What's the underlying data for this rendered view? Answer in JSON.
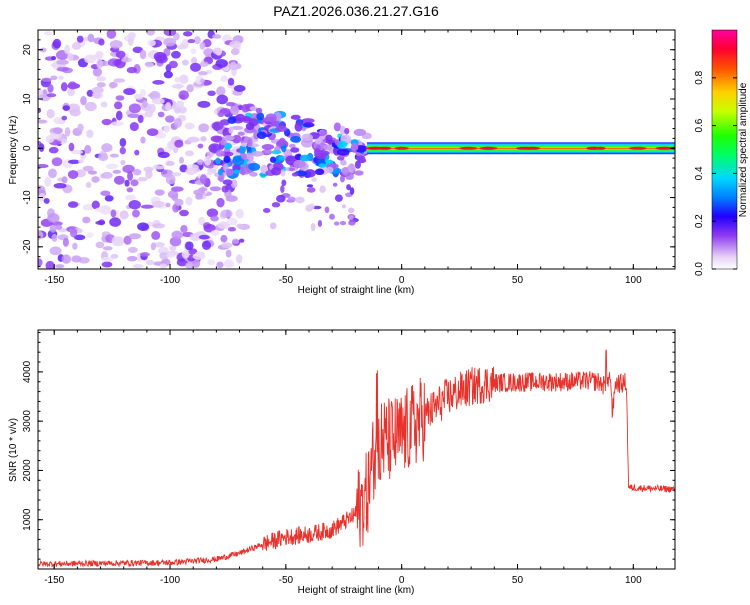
{
  "title": "PAZ1.2026.036.21.27.G16",
  "chart_data": [
    {
      "type": "heatmap",
      "xlabel": "Height of straight line (km)",
      "ylabel": "Frequency (Hz)",
      "xlim": [
        -157,
        118
      ],
      "ylim": [
        -24.5,
        24
      ],
      "x_ticks": [
        -150,
        -100,
        -50,
        0,
        50,
        100
      ],
      "x_tick_labels": [
        "-150",
        "-100",
        "-50",
        "0",
        "50",
        "100"
      ],
      "y_ticks": [
        -20,
        -10,
        0,
        10,
        20
      ],
      "y_tick_labels": [
        "-20",
        "-10",
        "0",
        "10",
        "20"
      ],
      "colorbar": {
        "label": "Normalized spectral amplitude",
        "range": [
          0.0,
          1.0
        ],
        "ticks": [
          0.0,
          0.2,
          0.4,
          0.6,
          0.8
        ],
        "tick_labels": [
          "0.0",
          "0.2",
          "0.4",
          "0.6",
          "0.8"
        ]
      },
      "description_regions": [
        {
          "x_range": [
            -157,
            -80
          ],
          "freq_range": [
            -24,
            24
          ],
          "amplitude": 0.15
        },
        {
          "x_range": [
            -80,
            -15
          ],
          "freq_range": [
            -17,
            12
          ],
          "amplitude": 0.3
        },
        {
          "x_range": [
            -15,
            118
          ],
          "freq_range": [
            -1,
            1
          ],
          "amplitude": 0.9
        }
      ]
    },
    {
      "type": "line",
      "xlabel": "Height of straight line (km)",
      "ylabel": "SNR (10 * v/v)",
      "xlim": [
        -157,
        118
      ],
      "ylim": [
        0,
        4850
      ],
      "x_ticks": [
        -150,
        -100,
        -50,
        0,
        50,
        100
      ],
      "x_tick_labels": [
        "-150",
        "-100",
        "-50",
        "0",
        "50",
        "100"
      ],
      "y_ticks": [
        1000,
        2000,
        3000,
        4000
      ],
      "y_tick_labels": [
        "1000",
        "2000",
        "3000",
        "4000"
      ],
      "series": [
        {
          "name": "SNR",
          "color": "#e8312b",
          "x": [
            -157,
            -140,
            -120,
            -100,
            -90,
            -80,
            -70,
            -60,
            -50,
            -40,
            -30,
            -20,
            -15,
            -12,
            -10,
            -5,
            0,
            5,
            10,
            15,
            20,
            25,
            30,
            35,
            40,
            50,
            60,
            70,
            80,
            85,
            88,
            90,
            91,
            92,
            95,
            97,
            98,
            100,
            110,
            118
          ],
          "values": [
            100,
            110,
            120,
            130,
            160,
            200,
            320,
            500,
            650,
            700,
            800,
            1100,
            1500,
            2300,
            2600,
            2600,
            2700,
            2900,
            3100,
            3300,
            3500,
            3600,
            3700,
            3750,
            3780,
            3790,
            3800,
            3800,
            3820,
            3800,
            3700,
            4000,
            3100,
            3800,
            3750,
            3800,
            1650,
            1650,
            1630,
            1620
          ]
        }
      ]
    }
  ]
}
